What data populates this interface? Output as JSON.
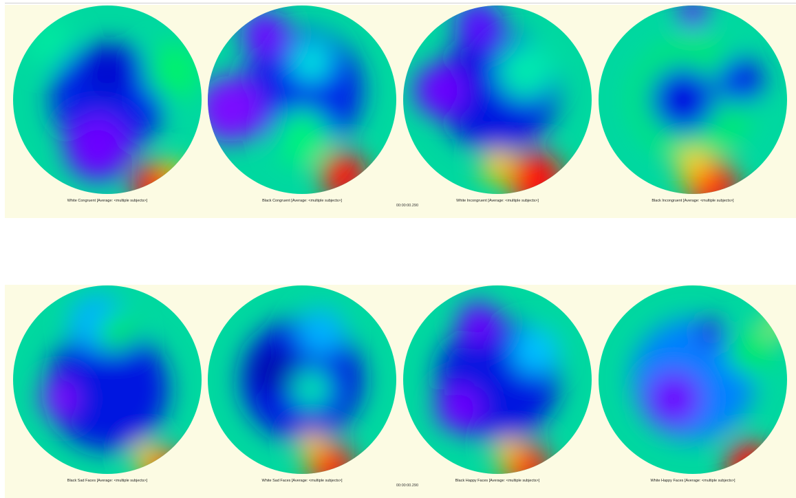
{
  "rows": [
    {
      "timestamp": "00:00:00.290",
      "maps": [
        {
          "label": "White Congruent [Average: <multiple subjects>]",
          "blobs": [
            [
              0.5,
              0.5,
              0.6,
              "#0022e6"
            ],
            [
              0.45,
              0.75,
              0.35,
              "#6a00ff"
            ],
            [
              0.5,
              0.35,
              0.28,
              "#0010d0"
            ],
            [
              0.85,
              0.35,
              0.3,
              "#00f070"
            ],
            [
              0.2,
              0.2,
              0.25,
              "#00e8a0"
            ],
            [
              0.75,
              0.95,
              0.25,
              "#ff1010"
            ],
            [
              0.85,
              0.88,
              0.12,
              "#ffd000"
            ]
          ]
        },
        {
          "label": "Black Congruent [Average: <multiple subjects>]",
          "blobs": [
            [
              0.5,
              0.45,
              0.65,
              "#0020e8"
            ],
            [
              0.12,
              0.55,
              0.35,
              "#7a10ff"
            ],
            [
              0.55,
              0.3,
              0.22,
              "#00e0e0"
            ],
            [
              0.5,
              0.7,
              0.3,
              "#00f080"
            ],
            [
              0.72,
              0.9,
              0.25,
              "#ff1010"
            ],
            [
              0.3,
              0.15,
              0.25,
              "#6a10ff"
            ]
          ]
        },
        {
          "label": "White Incongruent [Average: <multiple subjects>]",
          "blobs": [
            [
              0.5,
              0.45,
              0.65,
              "#0018e0"
            ],
            [
              0.2,
              0.45,
              0.28,
              "#6a00ff"
            ],
            [
              0.65,
              0.35,
              0.3,
              "#00e8b0"
            ],
            [
              0.4,
              0.1,
              0.25,
              "#5a10ff"
            ],
            [
              0.7,
              0.92,
              0.3,
              "#ff1010"
            ],
            [
              0.5,
              0.85,
              0.18,
              "#ffcc00"
            ]
          ]
        },
        {
          "label": "Black Incongruent [Average: <multiple subjects>]",
          "blobs": [
            [
              0.5,
              0.5,
              0.65,
              "#00e878"
            ],
            [
              0.45,
              0.5,
              0.35,
              "#0018e0"
            ],
            [
              0.75,
              0.4,
              0.25,
              "#0020e8"
            ],
            [
              0.6,
              0.95,
              0.28,
              "#ff1010"
            ],
            [
              0.5,
              0.85,
              0.18,
              "#ffcc00"
            ],
            [
              0.5,
              0.05,
              0.15,
              "#6a00ff"
            ]
          ]
        }
      ]
    },
    {
      "timestamp": "00:00:00.290",
      "maps": [
        {
          "label": "Black Sad Faces [Average: <multiple subjects>]",
          "blobs": [
            [
              0.5,
              0.55,
              0.65,
              "#0018e0"
            ],
            [
              0.25,
              0.6,
              0.2,
              "#7a10ff"
            ],
            [
              0.45,
              0.2,
              0.3,
              "#00b0ff"
            ],
            [
              0.55,
              0.25,
              0.2,
              "#00e870"
            ],
            [
              0.8,
              0.97,
              0.22,
              "#ff1010"
            ],
            [
              0.7,
              0.9,
              0.15,
              "#ffcc00"
            ]
          ]
        },
        {
          "label": "White Sad Faces [Average: <multiple subjects>]",
          "blobs": [
            [
              0.5,
              0.5,
              0.65,
              "#0018e0"
            ],
            [
              0.35,
              0.45,
              0.25,
              "#0010b0"
            ],
            [
              0.6,
              0.25,
              0.25,
              "#00b0ff"
            ],
            [
              0.55,
              0.55,
              0.2,
              "#00e8b0"
            ],
            [
              0.65,
              0.95,
              0.25,
              "#ff1010"
            ],
            [
              0.55,
              0.85,
              0.15,
              "#ffcc00"
            ]
          ]
        },
        {
          "label": "Black Happy Faces [Average: <multiple subjects>]",
          "blobs": [
            [
              0.5,
              0.5,
              0.65,
              "#0018e0"
            ],
            [
              0.3,
              0.65,
              0.25,
              "#6a00ff"
            ],
            [
              0.4,
              0.2,
              0.22,
              "#6a00ff"
            ],
            [
              0.7,
              0.35,
              0.25,
              "#00c0ff"
            ],
            [
              0.65,
              0.95,
              0.25,
              "#ff1010"
            ],
            [
              0.55,
              0.88,
              0.15,
              "#ffcc00"
            ]
          ]
        },
        {
          "label": "White Happy Faces [Average: <multiple subjects>]",
          "blobs": [
            [
              0.5,
              0.5,
              0.65,
              "#0080ff"
            ],
            [
              0.4,
              0.6,
              0.3,
              "#6a00ff"
            ],
            [
              0.8,
              0.35,
              0.25,
              "#00e870"
            ],
            [
              0.95,
              0.2,
              0.12,
              "#e0f040"
            ],
            [
              0.6,
              0.25,
              0.15,
              "#2010e0"
            ],
            [
              0.8,
              0.95,
              0.25,
              "#ff1010"
            ]
          ]
        }
      ]
    }
  ]
}
